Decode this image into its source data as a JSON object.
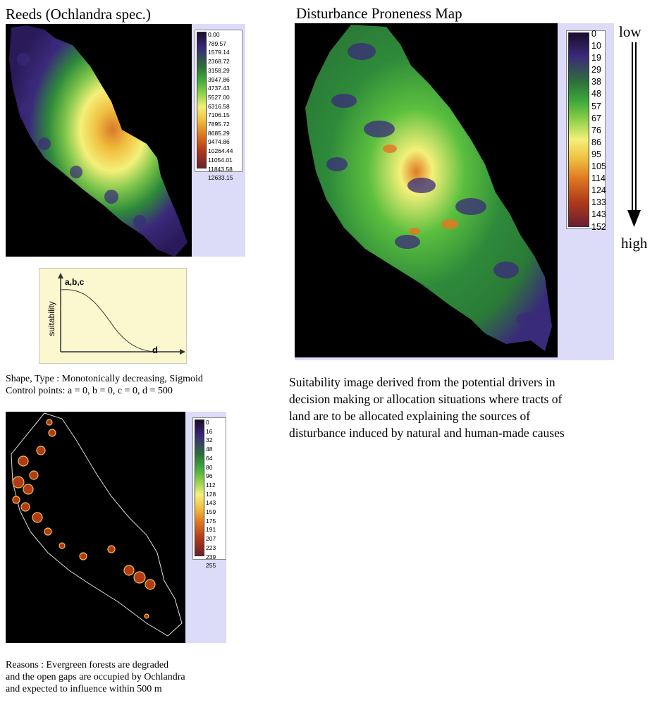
{
  "reeds_map": {
    "title": "Reeds (Ochlandra spec.)",
    "legend_values": [
      "0.00",
      "789.57",
      "1579.14",
      "2368.72",
      "3158.29",
      "3947.86",
      "4737.43",
      "5527.00",
      "6316.58",
      "7106.15",
      "7895.72",
      "8685.29",
      "9474.86",
      "10264.44",
      "11054.01",
      "11843.58",
      "12633.15"
    ]
  },
  "fuzzy_curve": {
    "point_label": "a,b,c",
    "y_axis_label": "suitability",
    "end_label": "d"
  },
  "shape_text": {
    "line1": "Shape, Type : Monotonically decreasing, Sigmoid",
    "line2": "Control points: a = 0, b = 0, c = 0,  d = 500"
  },
  "fuzzy_map": {
    "legend_values": [
      "0",
      "16",
      "32",
      "48",
      "64",
      "80",
      "96",
      "112",
      "128",
      "143",
      "159",
      "175",
      "191",
      "207",
      "223",
      "239",
      "255"
    ]
  },
  "reasons_text": {
    "line1": "Reasons : Evergreen forests are degraded",
    "line2": "and the open gaps are occupied by Ochlandra",
    "line3": "and expected to influence within 500 m"
  },
  "disturbance_map": {
    "title": "Disturbance Proneness Map",
    "legend_values": [
      "0",
      "10",
      "19",
      "29",
      "38",
      "48",
      "57",
      "67",
      "76",
      "86",
      "95",
      "105",
      "114",
      "124",
      "133",
      "143",
      "152"
    ],
    "scale_low": "low",
    "scale_high": "high"
  },
  "description": {
    "line1": "Suitability image derived from the potential drivers in",
    "line2": "decision making or allocation situations where tracts of",
    "line3": "land are to be allocated explaining the sources of",
    "line4": "disturbance induced by natural and human-made causes"
  },
  "colors": {
    "panel": "#dcdcf8",
    "map_bg": "#000000",
    "ramp": [
      "#1a0c2e",
      "#3a2a7a",
      "#2e6e3a",
      "#3ca83c",
      "#8fd04a",
      "#f4f07a",
      "#f0c040",
      "#e07a22",
      "#b23a1a",
      "#6a2030"
    ]
  }
}
